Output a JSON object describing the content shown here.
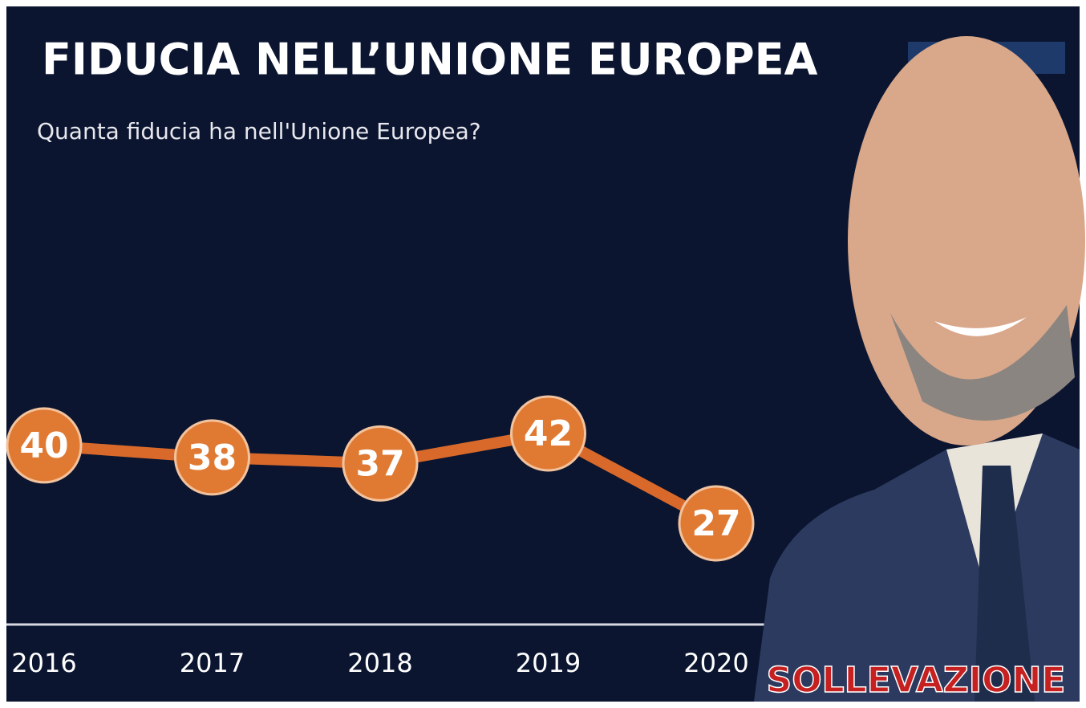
{
  "chart_data": {
    "type": "line",
    "title": "FIDUCIA NELL’UNIONE EUROPEA",
    "subtitle": "Quanta fiducia ha nell'Unione Europea?",
    "categories": [
      "2016",
      "2017",
      "2018",
      "2019",
      "2020"
    ],
    "values": [
      40,
      38,
      37,
      42,
      27
    ],
    "color": "#d9692a",
    "annotations": [
      "SOLLEVAZIONE"
    ]
  }
}
